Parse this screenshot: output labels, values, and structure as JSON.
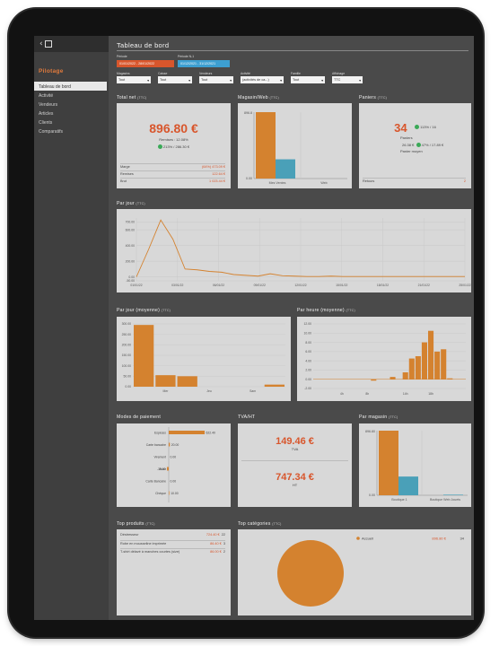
{
  "sidebar": {
    "brand": "Pilotage",
    "items": [
      {
        "label": "Tableau de bord",
        "active": true
      },
      {
        "label": "Activité",
        "active": false
      },
      {
        "label": "Vendeurs",
        "active": false
      },
      {
        "label": "Articles",
        "active": false
      },
      {
        "label": "Clients",
        "active": false
      },
      {
        "label": "Comparatifs",
        "active": false
      }
    ]
  },
  "header": {
    "title": "Tableau de bord",
    "periode_label": "Période",
    "periode_n1_label": "Période N-1",
    "periode_value": "01/01/2022 - 28/01/2022",
    "periode_n1_value": "01/12/2021 - 31/12/2021"
  },
  "filters": [
    {
      "label": "Magasins",
      "value": "Tout"
    },
    {
      "label": "Caisse",
      "value": "Tout"
    },
    {
      "label": "Vendeurs",
      "value": "Tout"
    },
    {
      "label": "Activité",
      "value": "(activités de ca...)"
    },
    {
      "label": "Famille",
      "value": "Tout"
    },
    {
      "label": "Affichage",
      "value": "TTC"
    }
  ],
  "total_net": {
    "title": "Total net",
    "suffix": "(TTC)",
    "value": "896.80 €",
    "remises": "Remises : 12.08%",
    "compare": "213% / 286.30 €",
    "rows": [
      {
        "label": "Marge",
        "value": "(64%) 473.09 €"
      },
      {
        "label": "Remises",
        "value": "122.64 €"
      },
      {
        "label": "Brut",
        "value": "1 023.44 €"
      }
    ]
  },
  "magasins": {
    "title": "Magasin/Web",
    "suffix": "(TTC)",
    "ymax_label": "896.8",
    "ymin_label": "0.00",
    "labels": [
      "Mes Ventes",
      "Web"
    ]
  },
  "paniers": {
    "title": "Paniers",
    "suffix": "(TTC)",
    "count": "34",
    "count_compare": "113% / 16",
    "count_label": "Paniers",
    "avg": "26.38 €",
    "avg_compare": "47% / 17.89 €",
    "avg_label": "Panier moyen",
    "footer_label": "Retours",
    "footer_value": "2"
  },
  "par_jour": {
    "title": "Par jour",
    "suffix": "(TTC)",
    "yticks": [
      "700.00",
      "600.00",
      "400.00",
      "200.00",
      "0.00",
      "-50.00"
    ],
    "xticks": [
      "01/01/22",
      "03/01/22",
      "06/01/22",
      "09/01/22",
      "12/01/22",
      "15/01/22",
      "18/01/22",
      "21/01/22",
      "25/01/22"
    ]
  },
  "par_jour_moy": {
    "title": "Par jour (moyenne)",
    "suffix": "(TTC)",
    "yticks": [
      "300.00",
      "250.00",
      "200.00",
      "150.00",
      "100.00",
      "50.00",
      "0.00"
    ],
    "xticks": [
      "Mer",
      "Jeu",
      "Sam"
    ]
  },
  "par_heure": {
    "title": "Par heure (moyenne)",
    "suffix": "(TTC)",
    "yticks": [
      "12.00",
      "10.00",
      "8.00",
      "6.00",
      "4.00",
      "2.00",
      "0.00",
      "-2.00"
    ],
    "xticks": [
      "4h",
      "8h",
      "14h",
      "18h"
    ]
  },
  "modes": {
    "title": "Modes de paiement",
    "rows": [
      {
        "label": "Espèces",
        "value": "622.40"
      },
      {
        "label": "Carte bancaire",
        "value": "20.00"
      },
      {
        "label": "Virement",
        "value": "0.00"
      },
      {
        "label": "Avoir",
        "value": "-30.00"
      },
      {
        "label": "Carte Bancaire",
        "value": "0.00"
      },
      {
        "label": "Chèque",
        "value": "10.00"
      }
    ]
  },
  "tva": {
    "title": "TVA/HT",
    "tva_value": "149.46 €",
    "tva_label": "TVA",
    "ht_value": "747.34 €",
    "ht_label": "HT"
  },
  "par_magasin": {
    "title": "Par magasin",
    "suffix": "(TTC)",
    "ymax_label": "896.80",
    "ymin_label": "0.00",
    "labels": [
      "Boutique 1",
      "Boutique Web Jouets"
    ]
  },
  "top_produits": {
    "title": "Top produits",
    "suffix": "(TTC)",
    "rows": [
      {
        "label": "Déstresseur",
        "value": "724.40 €",
        "qty": "22"
      },
      {
        "label": "Robe en mousseline imprimée",
        "value": "86.40 €",
        "qty": "3"
      },
      {
        "label": "T-shirt délavé à manches courtes (size)",
        "value": "86.00 €",
        "qty": "2"
      }
    ]
  },
  "top_categories": {
    "title": "Top catégories",
    "suffix": "(TTC)",
    "legend": {
      "label": "Accueil",
      "value": "896.80 €",
      "qty": "34"
    }
  },
  "colors": {
    "accent": "#d8562c",
    "bar": "#d4822f",
    "teal": "#4aa0b8",
    "green": "#3aa957"
  },
  "chart_data": [
    {
      "type": "bar",
      "title": "Magasin/Web",
      "categories": [
        "Mes Ventes",
        "Web"
      ],
      "series": [
        {
          "values": [
            896.8,
            0
          ]
        },
        {
          "values": [
            260,
            0
          ]
        }
      ],
      "ylim": [
        0,
        896.8
      ]
    },
    {
      "type": "line",
      "title": "Par jour",
      "x": [
        "01/01/22",
        "02/01/22",
        "03/01/22",
        "04/01/22",
        "05/01/22",
        "06/01/22",
        "07/01/22",
        "08/01/22",
        "09/01/22",
        "10/01/22",
        "11/01/22",
        "12/01/22",
        "13/01/22",
        "14/01/22",
        "15/01/22",
        "16/01/22",
        "17/01/22",
        "18/01/22",
        "19/01/22",
        "20/01/22",
        "21/01/22",
        "22/01/22",
        "23/01/22",
        "24/01/22",
        "25/01/22",
        "26/01/22",
        "27/01/22",
        "28/01/22"
      ],
      "values": [
        0,
        350,
        725,
        480,
        100,
        90,
        70,
        60,
        30,
        20,
        10,
        40,
        15,
        10,
        5,
        5,
        10,
        5,
        5,
        5,
        5,
        5,
        5,
        5,
        5,
        5,
        5,
        5
      ],
      "ylim": [
        -50,
        750
      ]
    },
    {
      "type": "bar",
      "title": "Par jour (moyenne)",
      "categories": [
        "Mar",
        "Mer",
        "Jeu",
        "Ven",
        "Sam",
        "Dim",
        "Lun"
      ],
      "values": [
        295,
        55,
        50,
        0,
        0,
        0,
        10
      ],
      "ylim": [
        0,
        300
      ]
    },
    {
      "type": "bar",
      "title": "Par heure (moyenne)",
      "categories": [
        "0h",
        "1h",
        "2h",
        "3h",
        "4h",
        "5h",
        "6h",
        "7h",
        "8h",
        "9h",
        "10h",
        "11h",
        "12h",
        "13h",
        "14h",
        "15h",
        "16h",
        "17h",
        "18h",
        "19h",
        "20h",
        "21h",
        "22h",
        "23h"
      ],
      "values": [
        0,
        0,
        0,
        0,
        0,
        0,
        0,
        0,
        0,
        -0.3,
        0,
        0,
        0.5,
        0,
        1.5,
        4.5,
        5,
        8,
        10.5,
        6,
        6.5,
        0.2,
        0,
        0
      ],
      "ylim": [
        -2,
        12
      ]
    },
    {
      "type": "bar",
      "title": "Modes de paiement",
      "categories": [
        "Espèces",
        "Carte bancaire",
        "Virement",
        "Avoir",
        "Carte Bancaire",
        "Chèque"
      ],
      "values": [
        622.4,
        20,
        0,
        -30,
        0,
        10
      ]
    },
    {
      "type": "bar",
      "title": "Par magasin",
      "categories": [
        "Boutique 1",
        "Boutique Web Jouets"
      ],
      "series": [
        {
          "values": [
            896.8,
            0
          ]
        },
        {
          "values": [
            260,
            8
          ]
        }
      ],
      "ylim": [
        0,
        896.8
      ]
    },
    {
      "type": "pie",
      "title": "Top catégories",
      "categories": [
        "Accueil"
      ],
      "values": [
        896.8
      ]
    }
  ]
}
